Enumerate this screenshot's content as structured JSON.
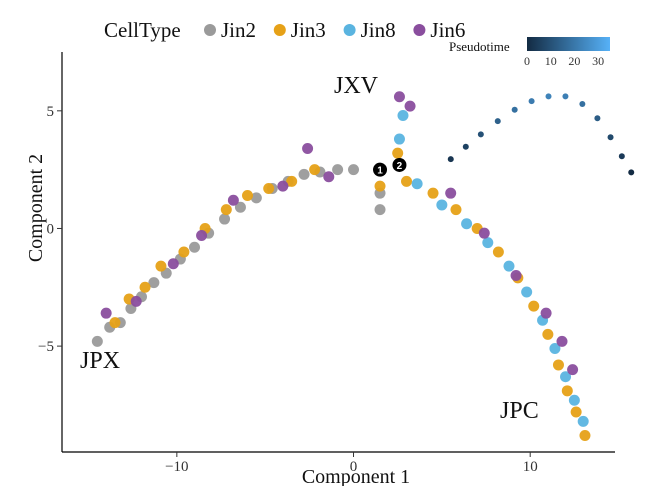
{
  "chart_data": [
    {
      "type": "scatter",
      "xlabel": "Component 1",
      "ylabel": "Component 2",
      "xlim": [
        -16.5,
        14.8
      ],
      "ylim": [
        -9.5,
        7.5
      ],
      "x_ticks": [
        -10,
        0,
        10
      ],
      "x_tick_labels": [
        "−10",
        "0",
        "10"
      ],
      "y_ticks": [
        5,
        0,
        -5
      ],
      "y_tick_labels": [
        "5",
        "0",
        "−5"
      ],
      "grid": false,
      "legend": {
        "title": "CellType",
        "placement": "top",
        "entries": [
          "Jin2",
          "Jin3",
          "Jin8",
          "Jin6"
        ]
      },
      "colors": {
        "Jin2": "#9a9a9a",
        "Jin3": "#e6a117",
        "Jin8": "#5ab4e0",
        "Jin6": "#8a4e9e",
        "branch_node": "#000000"
      },
      "series": [
        {
          "name": "Jin2",
          "points": [
            [
              -14.5,
              -4.8
            ],
            [
              -13.8,
              -4.2
            ],
            [
              -13.2,
              -4.0
            ],
            [
              -12.6,
              -3.4
            ],
            [
              -12.0,
              -2.9
            ],
            [
              -11.3,
              -2.3
            ],
            [
              -10.6,
              -1.9
            ],
            [
              -9.8,
              -1.3
            ],
            [
              -9.0,
              -0.8
            ],
            [
              -8.2,
              -0.2
            ],
            [
              -7.3,
              0.4
            ],
            [
              -6.4,
              0.9
            ],
            [
              -5.5,
              1.3
            ],
            [
              -4.6,
              1.7
            ],
            [
              -3.7,
              2.0
            ],
            [
              -2.8,
              2.3
            ],
            [
              -1.9,
              2.4
            ],
            [
              -0.9,
              2.5
            ],
            [
              0.0,
              2.5
            ],
            [
              1.5,
              1.5
            ],
            [
              1.5,
              0.8
            ]
          ]
        },
        {
          "name": "Jin3",
          "points": [
            [
              -13.5,
              -4.0
            ],
            [
              -12.7,
              -3.0
            ],
            [
              -11.8,
              -2.5
            ],
            [
              -10.9,
              -1.6
            ],
            [
              -9.6,
              -1.0
            ],
            [
              -8.4,
              0.0
            ],
            [
              -7.2,
              0.8
            ],
            [
              -6.0,
              1.4
            ],
            [
              -4.8,
              1.7
            ],
            [
              -3.5,
              2.0
            ],
            [
              -2.2,
              2.5
            ],
            [
              1.5,
              1.8
            ],
            [
              2.5,
              3.2
            ],
            [
              3.0,
              2.0
            ],
            [
              4.5,
              1.5
            ],
            [
              5.8,
              0.8
            ],
            [
              7.0,
              0.0
            ],
            [
              8.2,
              -1.0
            ],
            [
              9.3,
              -2.1
            ],
            [
              10.2,
              -3.3
            ],
            [
              11.0,
              -4.5
            ],
            [
              11.6,
              -5.8
            ],
            [
              12.1,
              -6.9
            ],
            [
              12.6,
              -7.8
            ],
            [
              13.1,
              -8.8
            ]
          ]
        },
        {
          "name": "Jin8",
          "points": [
            [
              2.8,
              4.8
            ],
            [
              2.6,
              3.8
            ],
            [
              3.6,
              1.9
            ],
            [
              5.0,
              1.0
            ],
            [
              6.4,
              0.2
            ],
            [
              7.6,
              -0.6
            ],
            [
              8.8,
              -1.6
            ],
            [
              9.8,
              -2.7
            ],
            [
              10.7,
              -3.9
            ],
            [
              11.4,
              -5.1
            ],
            [
              12.0,
              -6.3
            ],
            [
              12.5,
              -7.3
            ],
            [
              13.0,
              -8.2
            ]
          ]
        },
        {
          "name": "Jin6",
          "points": [
            [
              -14.0,
              -3.6
            ],
            [
              -12.3,
              -3.1
            ],
            [
              -10.2,
              -1.5
            ],
            [
              -8.6,
              -0.3
            ],
            [
              -6.8,
              1.2
            ],
            [
              -4.0,
              1.8
            ],
            [
              -2.6,
              3.4
            ],
            [
              -1.4,
              2.2
            ],
            [
              2.6,
              5.6
            ],
            [
              3.2,
              5.2
            ],
            [
              5.5,
              1.5
            ],
            [
              7.4,
              -0.2
            ],
            [
              9.2,
              -2.0
            ],
            [
              10.9,
              -3.6
            ],
            [
              11.8,
              -4.8
            ],
            [
              12.4,
              -6.0
            ]
          ]
        }
      ],
      "branch_points": [
        {
          "label": "1",
          "x": 1.5,
          "y": 2.5
        },
        {
          "label": "2",
          "x": 2.6,
          "y": 2.7
        }
      ],
      "annotations": [
        "JXV",
        "JPX",
        "JPC"
      ]
    },
    {
      "type": "scatter",
      "title": "Pseudotime",
      "xlim": [
        0,
        1
      ],
      "ylim": [
        0,
        1
      ],
      "colorbar": {
        "title": "Pseudotime",
        "ticks": [
          0,
          10,
          20,
          30
        ],
        "range": [
          0,
          35
        ],
        "color_low": "#132b43",
        "color_high": "#56b1f7"
      },
      "series": [
        {
          "points": [
            [
              0.02,
              0.22,
              32
            ],
            [
              0.1,
              0.35,
              29
            ],
            [
              0.18,
              0.48,
              25
            ],
            [
              0.27,
              0.62,
              21
            ],
            [
              0.36,
              0.74,
              17
            ],
            [
              0.45,
              0.83,
              14
            ],
            [
              0.54,
              0.88,
              12
            ],
            [
              0.63,
              0.88,
              13
            ],
            [
              0.72,
              0.8,
              17
            ],
            [
              0.8,
              0.65,
              22
            ],
            [
              0.87,
              0.45,
              27
            ],
            [
              0.93,
              0.25,
              31
            ],
            [
              0.98,
              0.08,
              35
            ]
          ]
        }
      ]
    }
  ]
}
